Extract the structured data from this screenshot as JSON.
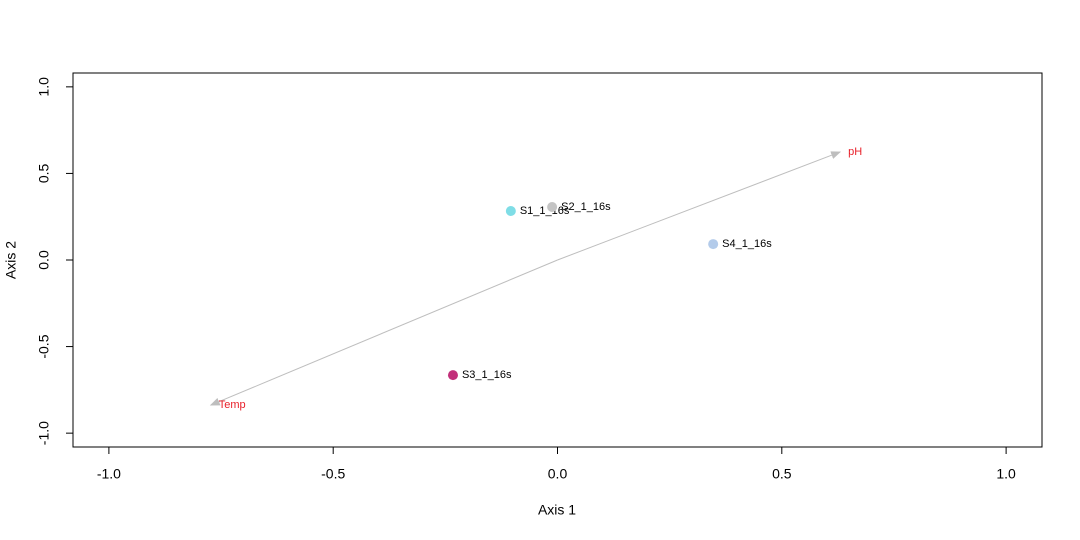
{
  "chart_data": {
    "type": "scatter",
    "xlabel": "Axis 1",
    "ylabel": "Axis 2",
    "xlim": [
      -1.08,
      1.08
    ],
    "ylim": [
      -1.08,
      1.08
    ],
    "xticks": [
      {
        "value": -1,
        "label": "-1.0"
      },
      {
        "value": -0.5,
        "label": "-0.5"
      },
      {
        "value": 0,
        "label": "0.0"
      },
      {
        "value": 0.5,
        "label": "0.5"
      },
      {
        "value": 1,
        "label": "1.0"
      }
    ],
    "yticks": [
      {
        "value": -1,
        "label": "-1.0"
      },
      {
        "value": -0.5,
        "label": "-0.5"
      },
      {
        "value": 0,
        "label": "0.0"
      },
      {
        "value": 0.5,
        "label": "0.5"
      },
      {
        "value": 1,
        "label": "1.0"
      }
    ],
    "labels": [
      "S1_1_16s",
      "S2_1_16s",
      "S3_1_16s",
      "S4_1_16s"
    ],
    "x": [
      -0.104,
      -0.012,
      -0.233,
      0.347
    ],
    "y": [
      0.283,
      0.306,
      -0.665,
      0.092
    ],
    "colors": [
      "#7fdde6",
      "#c4c4c4",
      "#c2307a",
      "#b3cbea"
    ],
    "arrows": {
      "color": "#bebebe",
      "label_color": "#e8202a",
      "labels": [
        "pH",
        "Temp"
      ],
      "x": [
        0.63,
        -0.773
      ],
      "y": [
        0.624,
        -0.838
      ]
    }
  }
}
